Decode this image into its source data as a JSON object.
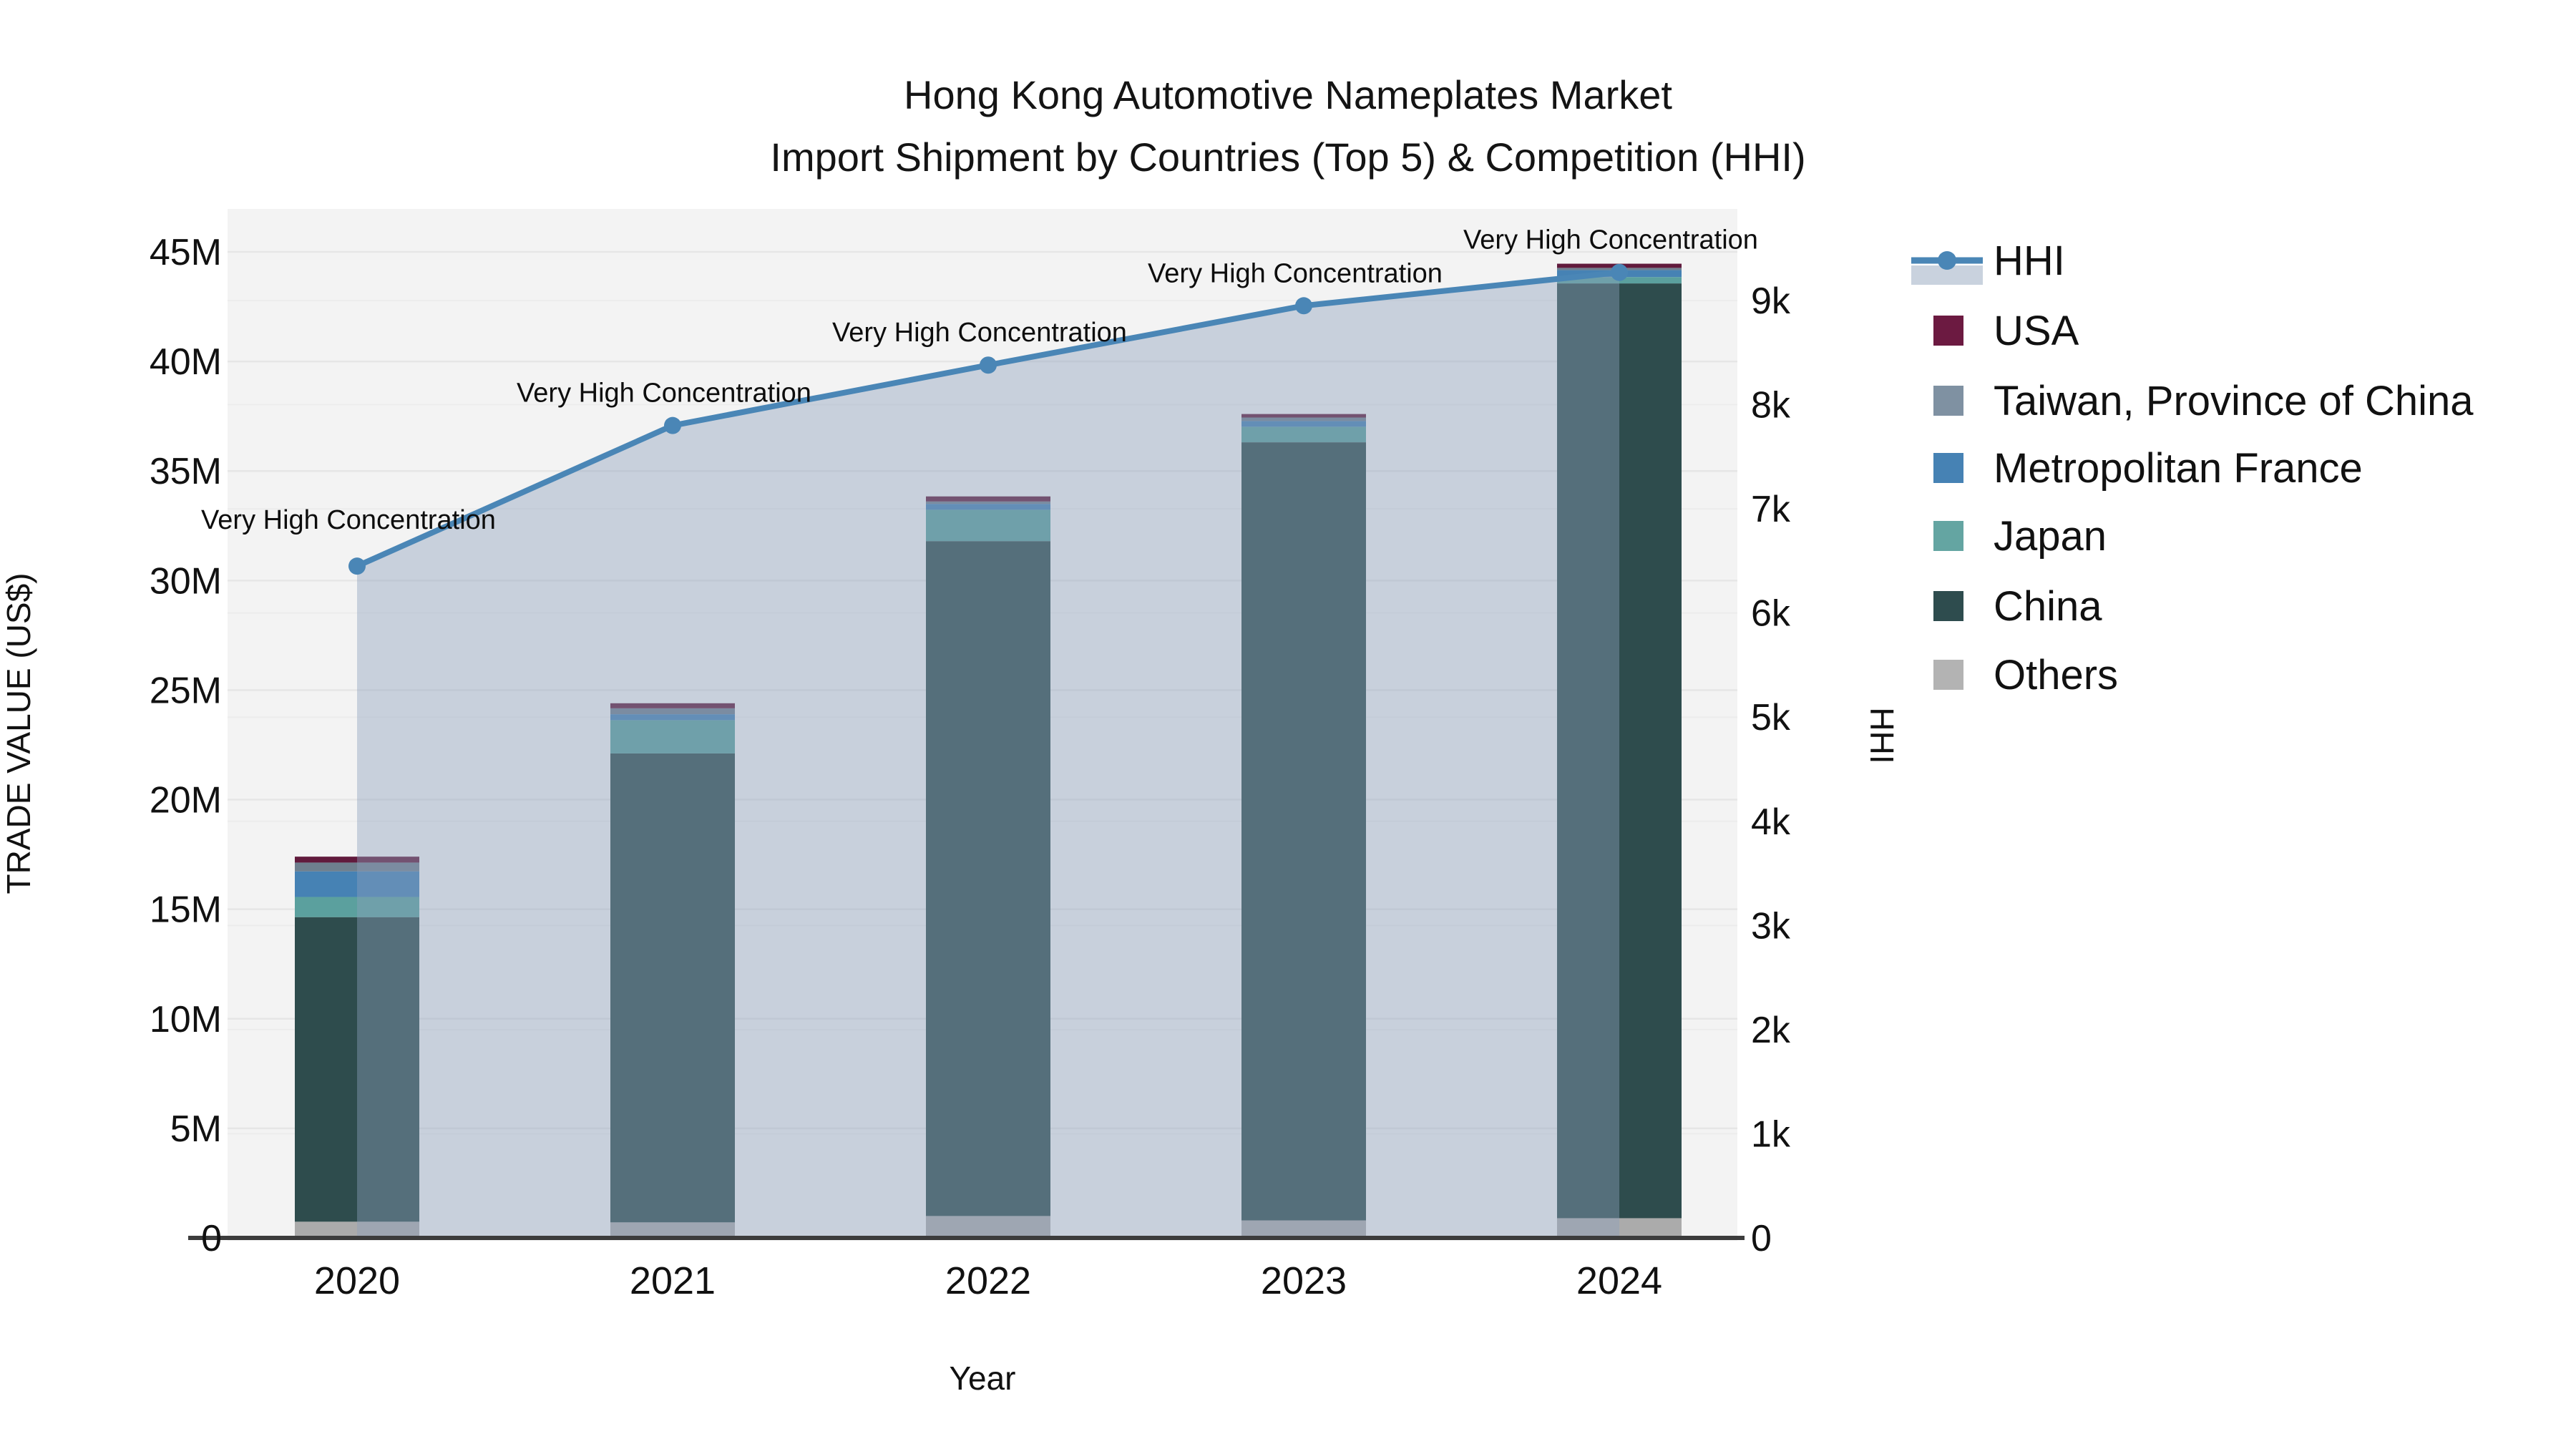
{
  "title": {
    "line1": "Hong Kong Automotive Nameplates Market",
    "line2": "Import Shipment by Countries (Top 5) & Competition (HHI)"
  },
  "axes": {
    "left": {
      "title": "TRADE VALUE (US$)",
      "ticks": [
        {
          "label": "45M",
          "value": 45
        },
        {
          "label": "40M",
          "value": 40
        },
        {
          "label": "35M",
          "value": 35
        },
        {
          "label": "30M",
          "value": 30
        },
        {
          "label": "25M",
          "value": 25
        },
        {
          "label": "20M",
          "value": 20
        },
        {
          "label": "15M",
          "value": 15
        },
        {
          "label": "10M",
          "value": 10
        },
        {
          "label": "5M",
          "value": 5
        },
        {
          "label": "0",
          "value": 0
        }
      ]
    },
    "right": {
      "title": "HHI",
      "ticks": [
        {
          "label": "9k",
          "value": 9000
        },
        {
          "label": "8k",
          "value": 8000
        },
        {
          "label": "7k",
          "value": 7000
        },
        {
          "label": "6k",
          "value": 6000
        },
        {
          "label": "5k",
          "value": 5000
        },
        {
          "label": "4k",
          "value": 4000
        },
        {
          "label": "3k",
          "value": 3000
        },
        {
          "label": "2k",
          "value": 2000
        },
        {
          "label": "1k",
          "value": 1000
        },
        {
          "label": "0",
          "value": 0
        }
      ]
    },
    "x": {
      "title": "Year",
      "categories": [
        "2020",
        "2021",
        "2022",
        "2023",
        "2024"
      ]
    }
  },
  "legend": {
    "items": [
      {
        "label": "HHI",
        "type": "line",
        "color": "#4a86b6",
        "band_color": "#c9d2de"
      },
      {
        "label": "USA",
        "type": "patch",
        "color": "#6c1a41"
      },
      {
        "label": "Taiwan, Province of China",
        "type": "patch",
        "color": "#7f91a2"
      },
      {
        "label": "Metropolitan France",
        "type": "patch",
        "color": "#4682b4"
      },
      {
        "label": "Japan",
        "type": "patch",
        "color": "#64a5a2"
      },
      {
        "label": "China",
        "type": "patch",
        "color": "#2e4c4e"
      },
      {
        "label": "Others",
        "type": "patch",
        "color": "#b3b3b3"
      }
    ]
  },
  "colors": {
    "plot_bg": "#f3f3f3",
    "grid_left": "#e6e6e6",
    "grid_right": "#ececec",
    "axis_line": "#3c3c3c",
    "area_fill": "rgba(140,160,188,0.42)",
    "hhi_line": "#4a86b6"
  },
  "chart_data": {
    "type": "combo: stacked bar + line(area)",
    "categories": [
      "2020",
      "2021",
      "2022",
      "2023",
      "2024"
    ],
    "bar_unit": "million US$",
    "ylim_left_musd": [
      0,
      45
    ],
    "ylim_right_hhi": [
      0,
      9400
    ],
    "grid": "on",
    "legend_position": "right",
    "stack_order_bottom_to_top": [
      "Others",
      "China",
      "Japan",
      "Metropolitan France",
      "Taiwan, Province of China",
      "USA"
    ],
    "series": [
      {
        "name": "USA",
        "color": "#611a3c",
        "values_musd": [
          0.27,
          0.23,
          0.23,
          0.16,
          0.19
        ]
      },
      {
        "name": "Taiwan, Province of China",
        "color": "#6e7f8e",
        "values_musd": [
          0.4,
          0.27,
          0.11,
          0.16,
          0.1
        ]
      },
      {
        "name": "Metropolitan France",
        "color": "#4682b4",
        "values_musd": [
          1.17,
          0.27,
          0.27,
          0.26,
          0.32
        ]
      },
      {
        "name": "Japan",
        "color": "#5ba09e",
        "values_musd": [
          0.92,
          1.52,
          1.43,
          0.71,
          0.29
        ]
      },
      {
        "name": "China",
        "color": "#2e4c4d",
        "values_musd": [
          13.9,
          21.4,
          30.8,
          35.51,
          42.66
        ]
      },
      {
        "name": "Others",
        "color": "#ababab",
        "values_musd": [
          0.74,
          0.71,
          1.0,
          0.8,
          0.9
        ]
      }
    ],
    "bar_totals_musd": [
      17.4,
      24.4,
      33.84,
      37.6,
      44.46
    ],
    "line_series": {
      "name": "HHI",
      "values": [
        6450,
        7800,
        8380,
        8950,
        9270
      ],
      "point_annotations": [
        "Very High Concentration",
        "Very High Concentration",
        "Very High Concentration",
        "Very High Concentration",
        "Very High Concentration"
      ]
    },
    "title": "Hong Kong Automotive Nameplates Market — Import Shipment by Countries (Top 5) & Competition (HHI)",
    "xlabel": "Year",
    "ylabel_left": "TRADE VALUE (US$)",
    "ylabel_right": "HHI"
  }
}
